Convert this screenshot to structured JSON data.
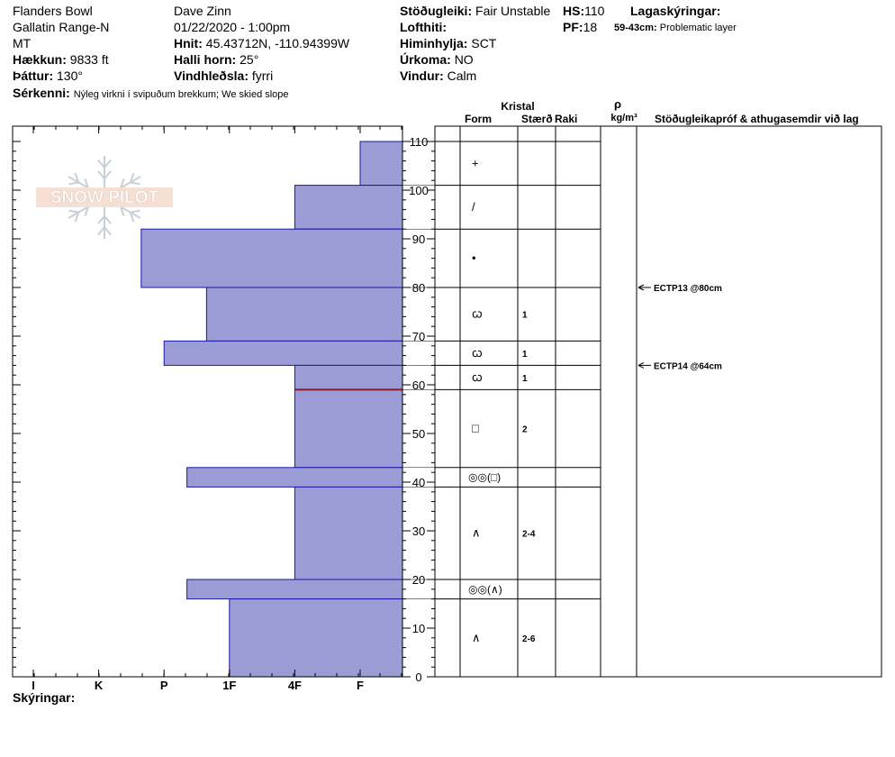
{
  "header": {
    "location": "Flanders Bowl",
    "range": "Gallatin Range-N",
    "state": "MT",
    "elevation_label": "Hækkun:",
    "elevation": "9833 ft",
    "aspect_label": "Þáttur:",
    "aspect": "130°",
    "features_label": "Sérkenni:",
    "features": "Nýleg virkni í svipuðum brekkum; We skied slope",
    "observer": "Dave Zinn",
    "datetime": "01/22/2020 - 1:00pm",
    "coords_label": "Hnit:",
    "coords": "45.43712N, -110.94399W",
    "slope_label": "Halli horn:",
    "slope": "25°",
    "wind_loading_label": "Vindhleðsla:",
    "wind_loading": "fyrri",
    "stability_label": "Stöðugleiki:",
    "stability": "Fair Unstable",
    "hs_label": "HS:",
    "hs": "110",
    "air_temp_label": "Lofthiti:",
    "pf_label": "PF:",
    "pf": "18",
    "sky_label": "Himinhylja:",
    "sky": "SCT",
    "precip_label": "Úrkoma:",
    "precip": "NO",
    "wind_label": "Vindur:",
    "wind": "Calm",
    "layer_notes_label": "Lagaskýringar:",
    "layer_note_range": "59-43cm:",
    "layer_note_text": "Problematic layer"
  },
  "columns": {
    "crystal": "Kristal",
    "form": "Form",
    "size": "Stærð",
    "moisture": "Raki",
    "rho": "ρ",
    "density_unit": "kg/m³",
    "tests": "Stöðugleikapróf & athugasemdir við lag"
  },
  "legend_label": "Skýringar:",
  "watermark": "SNOW PILOT",
  "chart_data": {
    "type": "bar",
    "orientation": "horizontal",
    "y_axis": {
      "min": 0,
      "max": 110,
      "ticks": [
        0,
        10,
        20,
        30,
        40,
        50,
        60,
        70,
        80,
        90,
        100,
        110
      ]
    },
    "x_axis": {
      "tick_labels": [
        "I",
        "K",
        "P",
        "1F",
        "4F",
        "F"
      ]
    },
    "hardness_layers": [
      {
        "top": 110,
        "bottom": 101,
        "hardness": "F"
      },
      {
        "top": 101,
        "bottom": 92,
        "hardness": "4F"
      },
      {
        "top": 92,
        "bottom": 80,
        "hardness": "P-"
      },
      {
        "top": 80,
        "bottom": 69,
        "hardness": "1F-"
      },
      {
        "top": 69,
        "bottom": 64,
        "hardness": "P+"
      },
      {
        "top": 64,
        "bottom": 43,
        "hardness": "4F"
      },
      {
        "top": 43,
        "bottom": 39,
        "hardness": "1F+"
      },
      {
        "top": 39,
        "bottom": 20,
        "hardness": "4F"
      },
      {
        "top": 20,
        "bottom": 16,
        "hardness": "1F+"
      },
      {
        "top": 16,
        "bottom": 0,
        "hardness": "1F"
      }
    ],
    "hardness_positions": {
      "I": 0,
      "K": 1,
      "P": 2,
      "1F": 3,
      "4F": 4,
      "F": 5,
      "P-": 1.65,
      "P+": 2.0,
      "1F-": 2.65,
      "1F+": 2.35
    },
    "marker_line": 59,
    "crystal_layers": [
      {
        "top": 110,
        "bottom": 101,
        "form": "+",
        "size": ""
      },
      {
        "top": 101,
        "bottom": 92,
        "form": "/",
        "size": ""
      },
      {
        "top": 92,
        "bottom": 80,
        "form": "•",
        "size": ""
      },
      {
        "top": 80,
        "bottom": 69,
        "form": "ꞷ",
        "size": "1"
      },
      {
        "top": 69,
        "bottom": 64,
        "form": "ꞷ",
        "size": "1"
      },
      {
        "top": 64,
        "bottom": 59,
        "form": "ꞷ",
        "size": "1"
      },
      {
        "top": 59,
        "bottom": 43,
        "form": "□",
        "size": "2"
      },
      {
        "top": 43,
        "bottom": 39,
        "form": "◎◎(□)",
        "size": ""
      },
      {
        "top": 39,
        "bottom": 20,
        "form": "∧",
        "size": "2-4"
      },
      {
        "top": 20,
        "bottom": 16,
        "form": "◎◎(∧)",
        "size": ""
      },
      {
        "top": 16,
        "bottom": 0,
        "form": "∧",
        "size": "2-6"
      }
    ],
    "tests": [
      {
        "depth": 80,
        "label": "ECTP13 @80cm"
      },
      {
        "depth": 64,
        "label": "ECTP14 @64cm"
      }
    ]
  }
}
